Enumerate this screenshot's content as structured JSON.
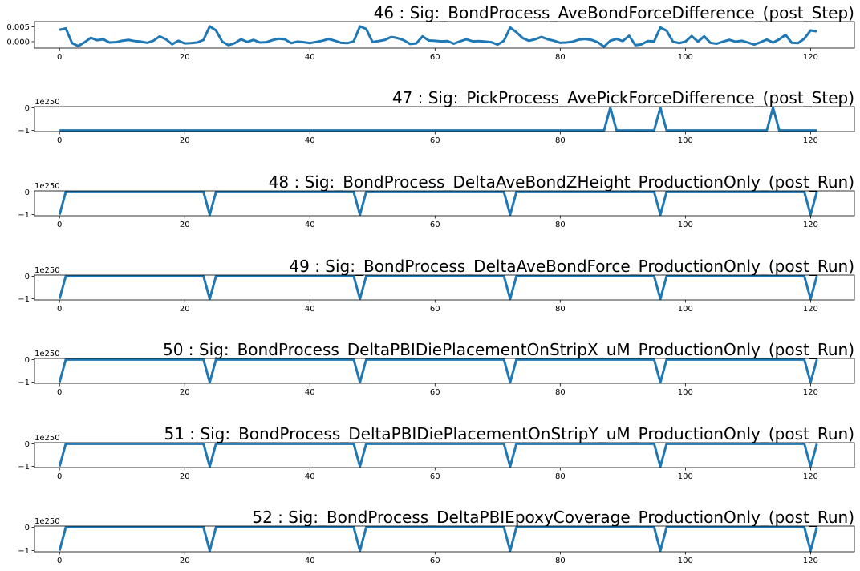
{
  "chart_data": [
    {
      "type": "line",
      "title": "46 : Sig:_BondProcess_AveBondForceDifference_(post_Step)",
      "color": "#1f77b4",
      "xlim": [
        -4,
        127
      ],
      "ylim": [
        -0.0022,
        0.0068
      ],
      "xticks": [
        0,
        20,
        40,
        60,
        80,
        100,
        120
      ],
      "yticks": [
        0.0,
        0.005
      ],
      "ytick_labels": [
        "0.000",
        "0.005"
      ],
      "offset_text": "",
      "x_start": 0,
      "values": [
        0.004,
        0.0045,
        -0.0005,
        -0.0015,
        -0.0002,
        0.0013,
        0.0005,
        0.0008,
        -0.0003,
        -0.0002,
        0.0003,
        0.0006,
        0.0002,
        0.0,
        -0.0004,
        0.0003,
        0.0018,
        0.0008,
        -0.0009,
        0.0003,
        -0.0006,
        -0.0005,
        -0.0003,
        0.0006,
        0.0052,
        0.0038,
        0.0,
        -0.0012,
        -0.0005,
        0.0008,
        -0.0001,
        0.0006,
        -0.0003,
        -0.0002,
        0.0005,
        0.001,
        0.0008,
        -0.0005,
        0.0,
        -0.0002,
        -0.0005,
        -0.0001,
        0.0003,
        0.0009,
        0.0003,
        -0.0004,
        -0.0005,
        0.0001,
        0.0052,
        0.0043,
        -0.0001,
        0.0002,
        0.0006,
        0.0016,
        0.0012,
        0.0005,
        -0.0008,
        -0.0006,
        0.0018,
        0.0004,
        0.0003,
        0.0001,
        0.0002,
        -0.0007,
        0.0001,
        0.0008,
        0.0001,
        0.0002,
        0.0,
        -0.0002,
        -0.001,
        0.0003,
        0.0048,
        0.0032,
        0.0012,
        0.0003,
        0.0008,
        0.0016,
        0.0008,
        0.0003,
        -0.0004,
        -0.0003,
        0.0,
        0.0007,
        0.0009,
        0.0006,
        -0.0002,
        -0.0017,
        0.0003,
        0.0009,
        0.0002,
        0.002,
        -0.0012,
        -0.0009,
        0.0002,
        0.0001,
        0.0048,
        0.0037,
        0.0,
        -0.0005,
        0.0,
        0.0019,
        0.0,
        0.0018,
        -0.0004,
        -0.0007,
        0.0,
        0.0006,
        0.0,
        0.0003,
        -0.0003,
        -0.001,
        -0.0002,
        0.0007,
        -0.0003,
        0.0008,
        0.0023,
        -0.0004,
        -0.0005,
        0.001,
        0.0038,
        0.0035
      ]
    },
    {
      "type": "line",
      "title": "47 : Sig:_PickProcess_AvePickForceDifference_(post_Step)",
      "color": "#1f77b4",
      "xlim": [
        -4,
        127
      ],
      "ylim": [
        -1.05,
        0.05
      ],
      "xticks": [
        0,
        20,
        40,
        60,
        80,
        100,
        120
      ],
      "yticks": [
        -1,
        0
      ],
      "ytick_labels": [
        "−1",
        "0"
      ],
      "offset_text": "1e250",
      "x_start": 0,
      "baseline": -1,
      "spikes": [
        88,
        96,
        114
      ],
      "spike_value": 0,
      "length": 122
    },
    {
      "type": "line",
      "title": "48 : Sig:_BondProcess_DeltaAveBondZHeight_ProductionOnly_(post_Run)",
      "color": "#1f77b4",
      "xlim": [
        -4,
        127
      ],
      "ylim": [
        -1.05,
        0.05
      ],
      "xticks": [
        0,
        20,
        40,
        60,
        80,
        100,
        120
      ],
      "yticks": [
        -1,
        0
      ],
      "ytick_labels": [
        "−1",
        "0"
      ],
      "offset_text": "1e250",
      "x_start": 0,
      "baseline": 0,
      "spikes": [
        0,
        24,
        48,
        72,
        96,
        120
      ],
      "spike_value": -1,
      "length": 122
    },
    {
      "type": "line",
      "title": "49 : Sig:_BondProcess_DeltaAveBondForce_ProductionOnly_(post_Run)",
      "color": "#1f77b4",
      "xlim": [
        -4,
        127
      ],
      "ylim": [
        -1.05,
        0.05
      ],
      "xticks": [
        0,
        20,
        40,
        60,
        80,
        100,
        120
      ],
      "yticks": [
        -1,
        0
      ],
      "ytick_labels": [
        "−1",
        "0"
      ],
      "offset_text": "1e250",
      "x_start": 0,
      "baseline": 0,
      "spikes": [
        0,
        24,
        48,
        72,
        96,
        120
      ],
      "spike_value": -1,
      "length": 122
    },
    {
      "type": "line",
      "title": "50 : Sig:_BondProcess_DeltaPBIDiePlacementOnStripX_uM_ProductionOnly_(post_Run)",
      "color": "#1f77b4",
      "xlim": [
        -4,
        127
      ],
      "ylim": [
        -1.05,
        0.05
      ],
      "xticks": [
        0,
        20,
        40,
        60,
        80,
        100,
        120
      ],
      "yticks": [
        -1,
        0
      ],
      "ytick_labels": [
        "−1",
        "0"
      ],
      "offset_text": "1e250",
      "x_start": 0,
      "baseline": 0,
      "spikes": [
        0,
        24,
        48,
        72,
        96,
        120
      ],
      "spike_value": -1,
      "length": 122
    },
    {
      "type": "line",
      "title": "51 : Sig:_BondProcess_DeltaPBIDiePlacementOnStripY_uM_ProductionOnly_(post_Run)",
      "color": "#1f77b4",
      "xlim": [
        -4,
        127
      ],
      "ylim": [
        -1.05,
        0.05
      ],
      "xticks": [
        0,
        20,
        40,
        60,
        80,
        100,
        120
      ],
      "yticks": [
        -1,
        0
      ],
      "ytick_labels": [
        "−1",
        "0"
      ],
      "offset_text": "1e250",
      "x_start": 0,
      "baseline": 0,
      "spikes": [
        0,
        24,
        48,
        72,
        96,
        120
      ],
      "spike_value": -1,
      "length": 122
    },
    {
      "type": "line",
      "title": "52 : Sig:_BondProcess_DeltaPBIEpoxyCoverage_ProductionOnly_(post_Run)",
      "color": "#1f77b4",
      "xlim": [
        -4,
        127
      ],
      "ylim": [
        -1.05,
        0.05
      ],
      "xticks": [
        0,
        20,
        40,
        60,
        80,
        100,
        120
      ],
      "yticks": [
        -1,
        0
      ],
      "ytick_labels": [
        "−1",
        "0"
      ],
      "offset_text": "1e250",
      "x_start": 0,
      "baseline": 0,
      "spikes": [
        0,
        24,
        48,
        72,
        96,
        120
      ],
      "spike_value": -1,
      "length": 122
    }
  ]
}
